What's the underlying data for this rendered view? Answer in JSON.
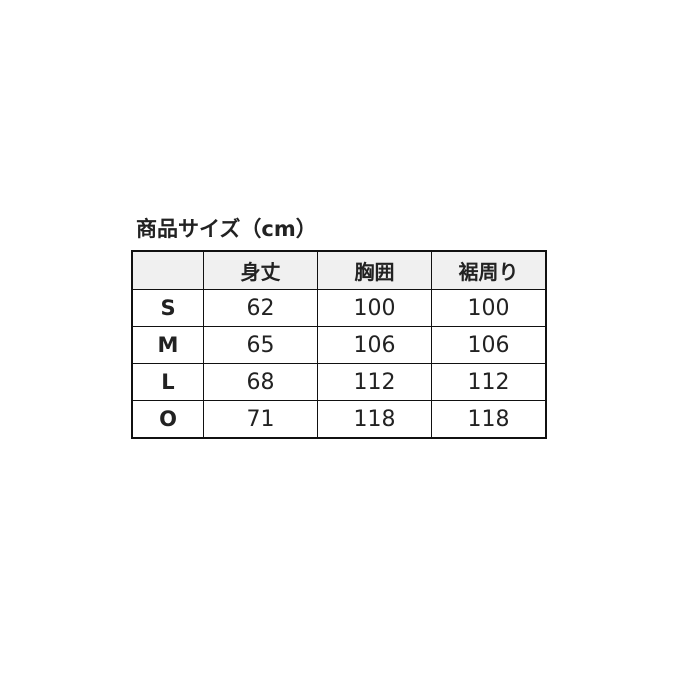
{
  "title": "商品サイズ（cm）",
  "table": {
    "headers": [
      "",
      "身丈",
      "胸囲",
      "裾周り"
    ],
    "rows": [
      {
        "size": "S",
        "values": [
          "62",
          "100",
          "100"
        ]
      },
      {
        "size": "M",
        "values": [
          "65",
          "106",
          "106"
        ]
      },
      {
        "size": "L",
        "values": [
          "68",
          "112",
          "112"
        ]
      },
      {
        "size": "O",
        "values": [
          "71",
          "118",
          "118"
        ]
      }
    ]
  },
  "colors": {
    "header_bg": "#f0f0f0",
    "border": "#111111"
  }
}
